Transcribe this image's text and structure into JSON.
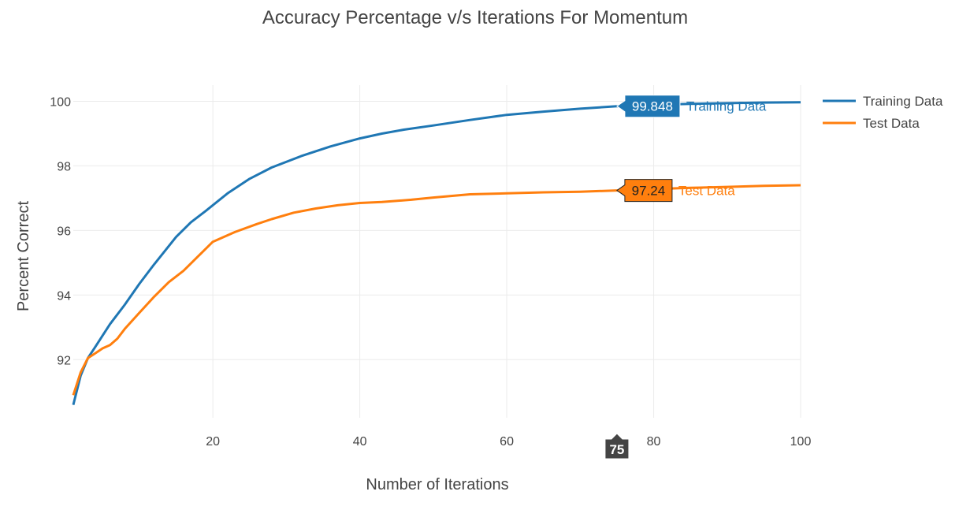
{
  "chart_data": {
    "type": "line",
    "title": "Accuracy Percentage v/s Iterations For Momentum",
    "xlabel": "Number of Iterations",
    "ylabel": "Percent Correct",
    "xlim": [
      1,
      100
    ],
    "ylim": [
      90.2,
      100.5
    ],
    "xticks": [
      20,
      40,
      60,
      80,
      100
    ],
    "yticks": [
      92,
      94,
      96,
      98,
      100
    ],
    "grid": true,
    "legend_position": "top-right",
    "series": [
      {
        "name": "Training Data",
        "color": "#1f77b4",
        "x": [
          1,
          2,
          3,
          4,
          6,
          8,
          10,
          12,
          15,
          17,
          19,
          22,
          25,
          28,
          32,
          36,
          40,
          43,
          46,
          50,
          55,
          60,
          65,
          70,
          75,
          80,
          85,
          90,
          95,
          100
        ],
        "y": [
          90.6,
          91.5,
          92.05,
          92.4,
          93.1,
          93.7,
          94.35,
          94.95,
          95.8,
          96.25,
          96.6,
          97.15,
          97.6,
          97.95,
          98.3,
          98.6,
          98.85,
          99.0,
          99.12,
          99.25,
          99.42,
          99.58,
          99.68,
          99.77,
          99.848,
          99.89,
          99.92,
          99.94,
          99.96,
          99.97
        ]
      },
      {
        "name": "Test Data",
        "color": "#ff7f0e",
        "x": [
          1,
          2,
          3,
          4,
          5,
          6,
          7,
          8,
          10,
          12,
          14,
          16,
          18,
          20,
          23,
          26,
          28,
          31,
          34,
          37,
          40,
          43,
          47,
          50,
          55,
          60,
          65,
          70,
          75,
          80,
          85,
          90,
          95,
          100
        ],
        "y": [
          90.9,
          91.6,
          92.05,
          92.2,
          92.35,
          92.45,
          92.65,
          92.95,
          93.45,
          93.95,
          94.4,
          94.75,
          95.2,
          95.65,
          95.95,
          96.2,
          96.35,
          96.55,
          96.68,
          96.78,
          96.85,
          96.88,
          96.95,
          97.02,
          97.12,
          97.15,
          97.18,
          97.2,
          97.24,
          97.28,
          97.32,
          97.35,
          97.38,
          97.4
        ]
      }
    ],
    "hover": {
      "x": 75,
      "x_label": "75",
      "points": [
        {
          "series": "Training Data",
          "value": "99.848",
          "y": 99.848
        },
        {
          "series": "Test Data",
          "value": "97.24",
          "y": 97.24
        }
      ]
    }
  }
}
